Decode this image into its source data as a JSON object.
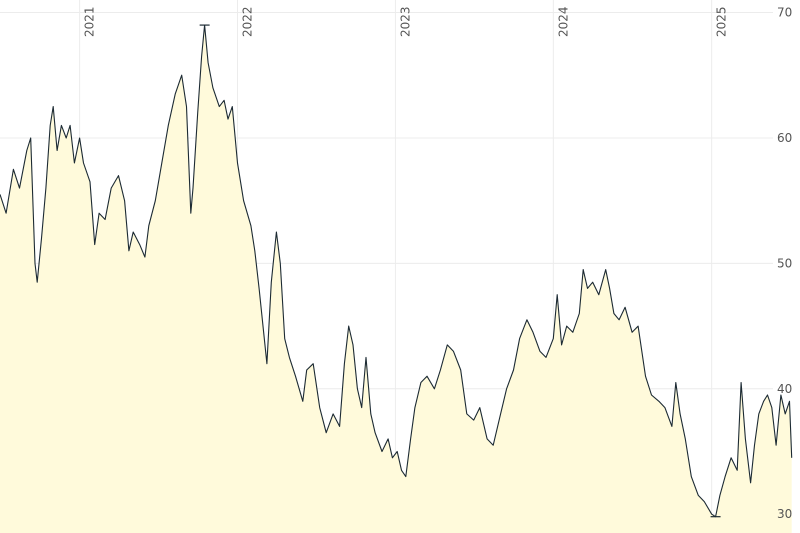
{
  "chart_data": {
    "type": "area",
    "title": "",
    "xlabel": "",
    "ylabel": "",
    "x_range": [
      "2020-07-01",
      "2025-06-01"
    ],
    "y_range": [
      28.5,
      71
    ],
    "y_ticks": [
      "30",
      "40",
      "50",
      "60",
      "70"
    ],
    "y_tick_values": [
      30,
      40,
      50,
      60,
      70
    ],
    "x_ticks": [
      {
        "label": "2021",
        "date": "2021-01-01"
      },
      {
        "label": "2022",
        "date": "2022-01-01"
      },
      {
        "label": "2023",
        "date": "2023-01-01"
      },
      {
        "label": "2024",
        "date": "2024-01-01"
      },
      {
        "label": "2025",
        "date": "2025-01-01"
      }
    ],
    "y_axis_side": "right",
    "x_axis_side": "top",
    "grid": true,
    "fill_color": "#fffadb",
    "line_color": "#1c2a33",
    "grid_color": "#ececec",
    "series": [
      {
        "points": [
          [
            "2020-07-01",
            55.5
          ],
          [
            "2020-07-15",
            54.0
          ],
          [
            "2020-08-01",
            57.5
          ],
          [
            "2020-08-15",
            56.0
          ],
          [
            "2020-09-01",
            59.0
          ],
          [
            "2020-09-10",
            60.0
          ],
          [
            "2020-09-20",
            50.0
          ],
          [
            "2020-09-25",
            48.5
          ],
          [
            "2020-10-05",
            52.0
          ],
          [
            "2020-10-15",
            56.0
          ],
          [
            "2020-10-25",
            61.0
          ],
          [
            "2020-11-01",
            62.5
          ],
          [
            "2020-11-10",
            59.0
          ],
          [
            "2020-11-20",
            61.0
          ],
          [
            "2020-12-01",
            60.0
          ],
          [
            "2020-12-10",
            61.0
          ],
          [
            "2020-12-20",
            58.0
          ],
          [
            "2021-01-01",
            60.0
          ],
          [
            "2021-01-10",
            58.0
          ],
          [
            "2021-01-25",
            56.5
          ],
          [
            "2021-02-05",
            51.5
          ],
          [
            "2021-02-15",
            54.0
          ],
          [
            "2021-03-01",
            53.5
          ],
          [
            "2021-03-15",
            56.0
          ],
          [
            "2021-04-01",
            57.0
          ],
          [
            "2021-04-15",
            55.0
          ],
          [
            "2021-04-25",
            51.0
          ],
          [
            "2021-05-05",
            52.5
          ],
          [
            "2021-05-20",
            51.5
          ],
          [
            "2021-06-01",
            50.5
          ],
          [
            "2021-06-10",
            53.0
          ],
          [
            "2021-06-25",
            55.0
          ],
          [
            "2021-07-10",
            58.0
          ],
          [
            "2021-07-25",
            61.0
          ],
          [
            "2021-08-10",
            63.5
          ],
          [
            "2021-08-25",
            65.0
          ],
          [
            "2021-09-05",
            62.5
          ],
          [
            "2021-09-15",
            54.0
          ],
          [
            "2021-09-20",
            56.0
          ],
          [
            "2021-10-01",
            62.0
          ],
          [
            "2021-10-10",
            66.5
          ],
          [
            "2021-10-17",
            69.0
          ],
          [
            "2021-10-25",
            66.0
          ],
          [
            "2021-11-05",
            64.0
          ],
          [
            "2021-11-20",
            62.5
          ],
          [
            "2021-12-01",
            63.0
          ],
          [
            "2021-12-10",
            61.5
          ],
          [
            "2021-12-20",
            62.5
          ],
          [
            "2022-01-01",
            58.0
          ],
          [
            "2022-01-15",
            55.0
          ],
          [
            "2022-02-01",
            53.0
          ],
          [
            "2022-02-10",
            51.0
          ],
          [
            "2022-02-20",
            48.0
          ],
          [
            "2022-03-01",
            45.0
          ],
          [
            "2022-03-10",
            42.0
          ],
          [
            "2022-03-20",
            48.5
          ],
          [
            "2022-04-01",
            52.5
          ],
          [
            "2022-04-10",
            50.0
          ],
          [
            "2022-04-20",
            44.0
          ],
          [
            "2022-05-01",
            42.5
          ],
          [
            "2022-05-15",
            41.0
          ],
          [
            "2022-06-01",
            39.0
          ],
          [
            "2022-06-10",
            41.5
          ],
          [
            "2022-06-25",
            42.0
          ],
          [
            "2022-07-10",
            38.5
          ],
          [
            "2022-07-25",
            36.5
          ],
          [
            "2022-08-10",
            38.0
          ],
          [
            "2022-08-25",
            37.0
          ],
          [
            "2022-09-05",
            42.0
          ],
          [
            "2022-09-15",
            45.0
          ],
          [
            "2022-09-25",
            43.5
          ],
          [
            "2022-10-05",
            40.0
          ],
          [
            "2022-10-15",
            38.5
          ],
          [
            "2022-10-25",
            42.5
          ],
          [
            "2022-11-05",
            38.0
          ],
          [
            "2022-11-15",
            36.5
          ],
          [
            "2022-12-01",
            35.0
          ],
          [
            "2022-12-15",
            36.0
          ],
          [
            "2022-12-25",
            34.5
          ],
          [
            "2023-01-05",
            35.0
          ],
          [
            "2023-01-15",
            33.5
          ],
          [
            "2023-01-25",
            33.0
          ],
          [
            "2023-02-05",
            36.0
          ],
          [
            "2023-02-15",
            38.5
          ],
          [
            "2023-03-01",
            40.5
          ],
          [
            "2023-03-15",
            41.0
          ],
          [
            "2023-04-01",
            40.0
          ],
          [
            "2023-04-15",
            41.5
          ],
          [
            "2023-05-01",
            43.5
          ],
          [
            "2023-05-15",
            43.0
          ],
          [
            "2023-06-01",
            41.5
          ],
          [
            "2023-06-15",
            38.0
          ],
          [
            "2023-07-01",
            37.5
          ],
          [
            "2023-07-15",
            38.5
          ],
          [
            "2023-08-01",
            36.0
          ],
          [
            "2023-08-15",
            35.5
          ],
          [
            "2023-09-01",
            38.0
          ],
          [
            "2023-09-15",
            40.0
          ],
          [
            "2023-10-01",
            41.5
          ],
          [
            "2023-10-15",
            44.0
          ],
          [
            "2023-11-01",
            45.5
          ],
          [
            "2023-11-15",
            44.5
          ],
          [
            "2023-12-01",
            43.0
          ],
          [
            "2023-12-15",
            42.5
          ],
          [
            "2024-01-01",
            44.0
          ],
          [
            "2024-01-10",
            47.5
          ],
          [
            "2024-01-20",
            43.5
          ],
          [
            "2024-02-01",
            45.0
          ],
          [
            "2024-02-15",
            44.5
          ],
          [
            "2024-03-01",
            46.0
          ],
          [
            "2024-03-10",
            49.5
          ],
          [
            "2024-03-20",
            48.0
          ],
          [
            "2024-04-01",
            48.5
          ],
          [
            "2024-04-15",
            47.5
          ],
          [
            "2024-05-01",
            49.5
          ],
          [
            "2024-05-10",
            48.0
          ],
          [
            "2024-05-20",
            46.0
          ],
          [
            "2024-06-01",
            45.5
          ],
          [
            "2024-06-15",
            46.5
          ],
          [
            "2024-07-01",
            44.5
          ],
          [
            "2024-07-15",
            45.0
          ],
          [
            "2024-08-01",
            41.0
          ],
          [
            "2024-08-15",
            39.5
          ],
          [
            "2024-09-01",
            39.0
          ],
          [
            "2024-09-15",
            38.5
          ],
          [
            "2024-10-01",
            37.0
          ],
          [
            "2024-10-10",
            40.5
          ],
          [
            "2024-10-20",
            38.0
          ],
          [
            "2024-11-01",
            36.0
          ],
          [
            "2024-11-15",
            33.0
          ],
          [
            "2024-12-01",
            31.5
          ],
          [
            "2024-12-15",
            31.0
          ],
          [
            "2025-01-01",
            30.0
          ],
          [
            "2025-01-10",
            29.8
          ],
          [
            "2025-01-20",
            31.5
          ],
          [
            "2025-02-01",
            33.0
          ],
          [
            "2025-02-15",
            34.5
          ],
          [
            "2025-03-01",
            33.5
          ],
          [
            "2025-03-10",
            40.5
          ],
          [
            "2025-03-20",
            36.0
          ],
          [
            "2025-04-01",
            32.5
          ],
          [
            "2025-04-10",
            35.5
          ],
          [
            "2025-04-20",
            38.0
          ],
          [
            "2025-05-01",
            39.0
          ],
          [
            "2025-05-10",
            39.5
          ],
          [
            "2025-05-20",
            38.5
          ],
          [
            "2025-05-30",
            35.5
          ],
          [
            "2025-06-10",
            39.5
          ],
          [
            "2025-06-20",
            38.0
          ],
          [
            "2025-06-30",
            39.0
          ],
          [
            "2025-07-05",
            34.5
          ]
        ],
        "max_marker": [
          "2021-10-17",
          69.0
        ],
        "min_marker": [
          "2025-01-10",
          29.8
        ]
      }
    ]
  }
}
